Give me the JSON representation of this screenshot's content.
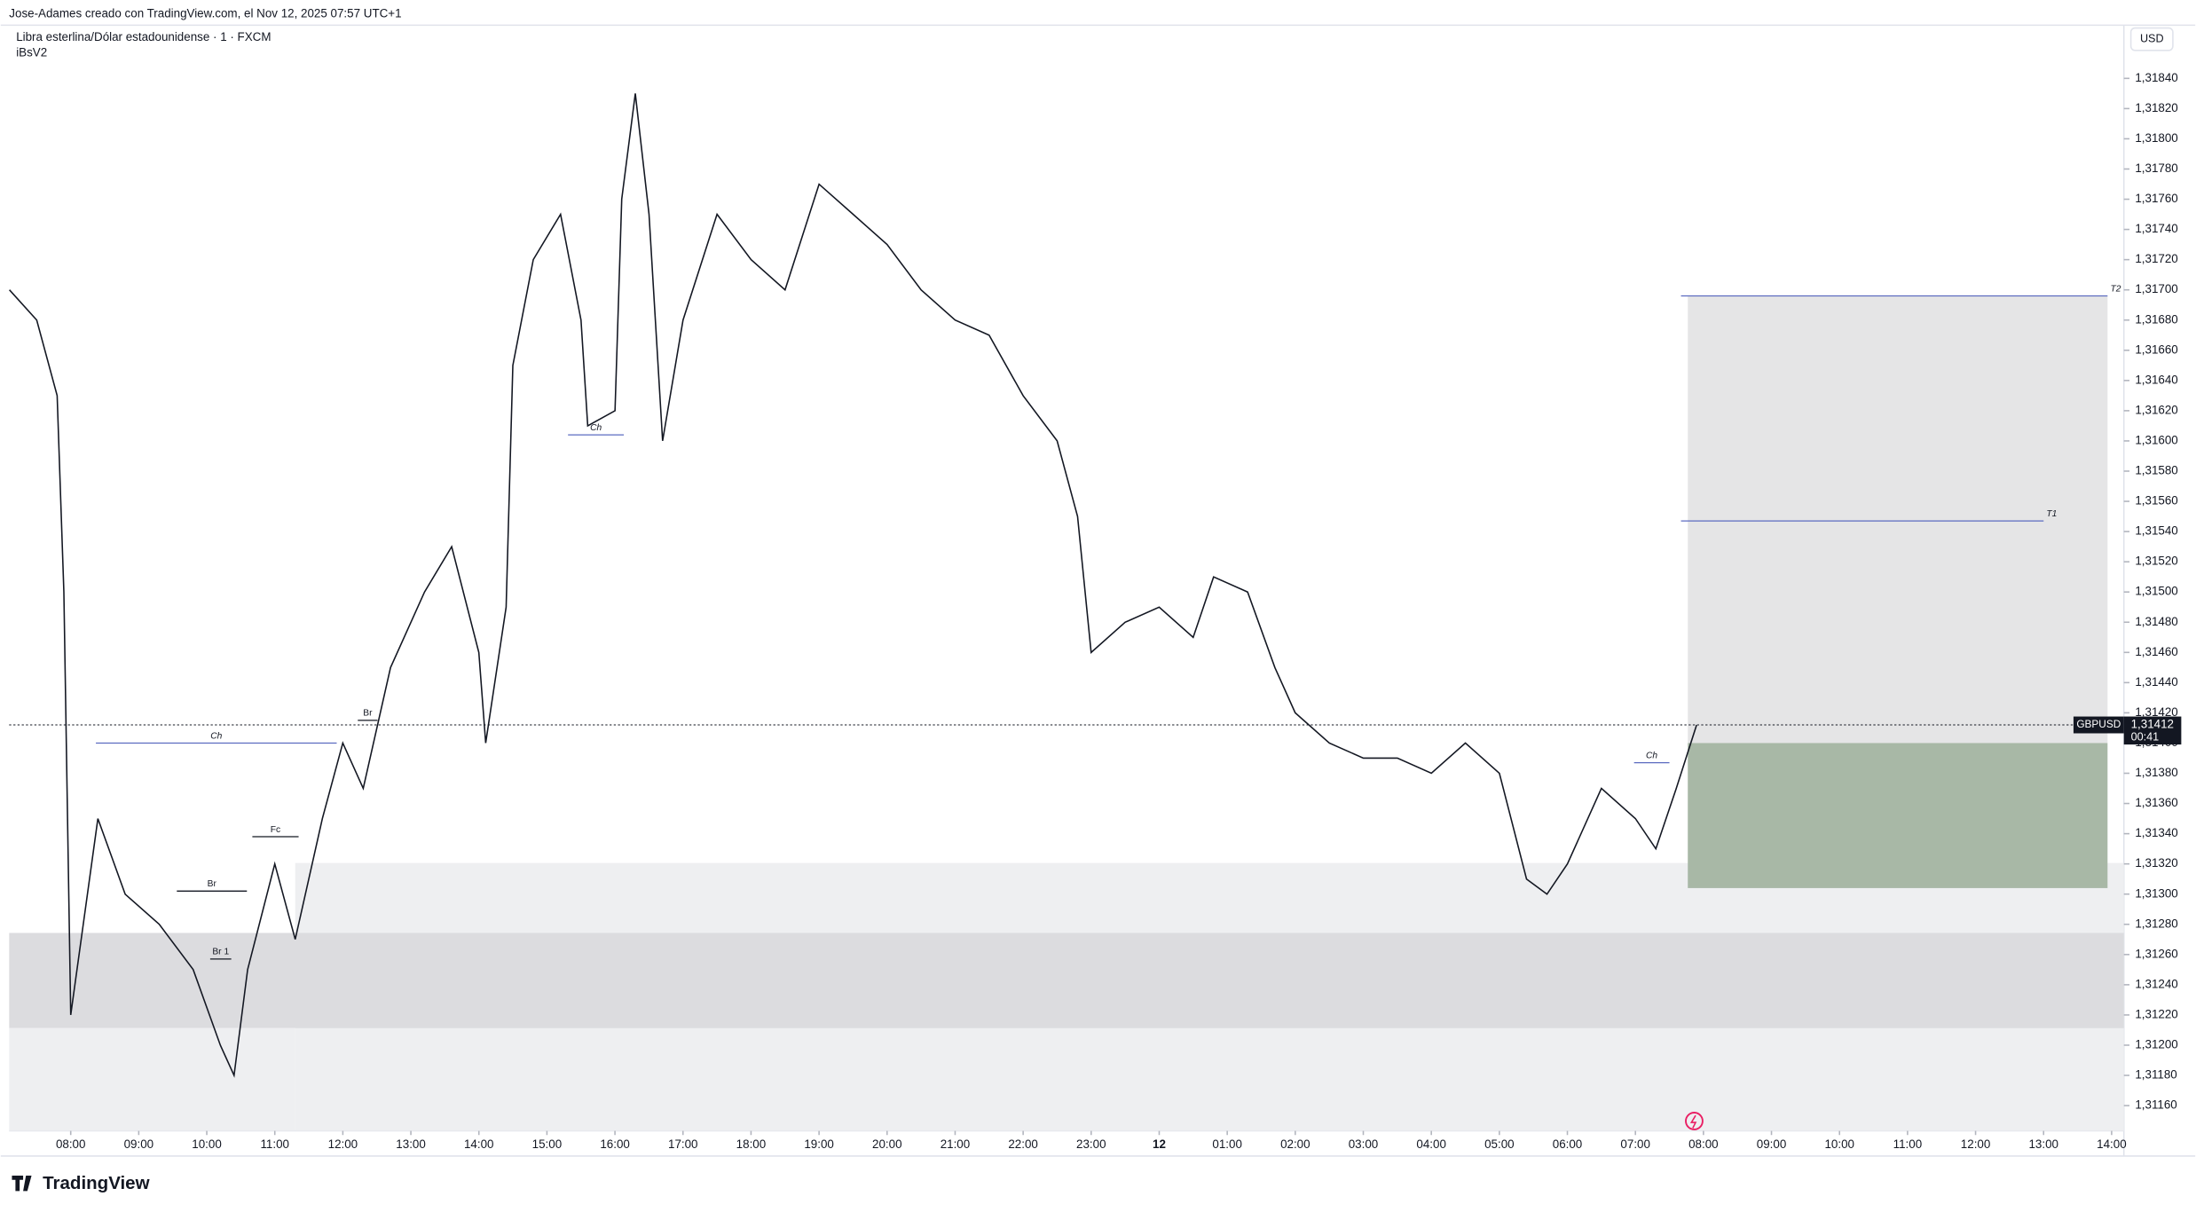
{
  "header": {
    "credit": "Jose-Adames creado con TradingView.com, el Nov 12, 2025 07:57 UTC+1",
    "instrument": "Libra esterlina/Dólar estadounidense · 1 · FXCM",
    "indicator": "iBsV2",
    "currency": "USD",
    "brand": "TradingView"
  },
  "chart_data": {
    "type": "line",
    "color": "#131722",
    "symbol": "GBPUSD",
    "last_price": {
      "value": 1.31412,
      "label": "1,31412"
    },
    "countdown": "00:41",
    "x": [
      7.1,
      7.5,
      7.8,
      7.9,
      8.0,
      8.4,
      8.8,
      9.3,
      9.8,
      10.2,
      10.4,
      10.6,
      11.0,
      11.3,
      11.7,
      12.0,
      12.3,
      12.7,
      13.2,
      13.6,
      14.0,
      14.1,
      14.4,
      14.5,
      14.8,
      15.2,
      15.5,
      15.6,
      16.0,
      16.1,
      16.3,
      16.5,
      16.7,
      17.0,
      17.5,
      18.0,
      18.5,
      19.0,
      19.5,
      20.0,
      20.5,
      21.0,
      21.5,
      22.0,
      22.5,
      22.8,
      23.0,
      23.5,
      24.0,
      24.5,
      24.8,
      25.3,
      25.7,
      26.0,
      26.5,
      27.0,
      27.5,
      28.0,
      28.5,
      29.0,
      29.4,
      29.7,
      30.0,
      30.5,
      31.0,
      31.3,
      31.6,
      31.9
    ],
    "values": [
      1.317,
      1.3168,
      1.3163,
      1.315,
      1.3122,
      1.3135,
      1.313,
      1.3128,
      1.3125,
      1.312,
      1.3118,
      1.3125,
      1.3132,
      1.3127,
      1.3135,
      1.314,
      1.3137,
      1.3145,
      1.315,
      1.3153,
      1.3146,
      1.314,
      1.3149,
      1.3165,
      1.3172,
      1.3175,
      1.3168,
      1.3161,
      1.3162,
      1.3176,
      1.3183,
      1.3175,
      1.316,
      1.3168,
      1.3175,
      1.3172,
      1.317,
      1.3177,
      1.3175,
      1.3173,
      1.317,
      1.3168,
      1.3167,
      1.3163,
      1.316,
      1.3155,
      1.3146,
      1.3148,
      1.3149,
      1.3147,
      1.3151,
      1.315,
      1.3145,
      1.3142,
      1.314,
      1.3139,
      1.3139,
      1.3138,
      1.314,
      1.3138,
      1.3131,
      1.313,
      1.3132,
      1.3137,
      1.3135,
      1.3133,
      1.3137,
      1.31412
    ],
    "xlim": [
      7.095,
      38.18
    ],
    "xticks": [
      {
        "value": 8,
        "label": "08:00"
      },
      {
        "value": 9,
        "label": "09:00"
      },
      {
        "value": 10,
        "label": "10:00"
      },
      {
        "value": 11,
        "label": "11:00"
      },
      {
        "value": 12,
        "label": "12:00"
      },
      {
        "value": 13,
        "label": "13:00"
      },
      {
        "value": 14,
        "label": "14:00"
      },
      {
        "value": 15,
        "label": "15:00"
      },
      {
        "value": 16,
        "label": "16:00"
      },
      {
        "value": 17,
        "label": "17:00"
      },
      {
        "value": 18,
        "label": "18:00"
      },
      {
        "value": 19,
        "label": "19:00"
      },
      {
        "value": 20,
        "label": "20:00"
      },
      {
        "value": 21,
        "label": "21:00"
      },
      {
        "value": 22,
        "label": "22:00"
      },
      {
        "value": 23,
        "label": "23:00"
      },
      {
        "value": 24,
        "label": "12"
      },
      {
        "value": 25,
        "label": "01:00"
      },
      {
        "value": 26,
        "label": "02:00"
      },
      {
        "value": 27,
        "label": "03:00"
      },
      {
        "value": 28,
        "label": "04:00"
      },
      {
        "value": 29,
        "label": "05:00"
      },
      {
        "value": 30,
        "label": "06:00"
      },
      {
        "value": 31,
        "label": "07:00"
      },
      {
        "value": 32,
        "label": "08:00"
      },
      {
        "value": 33,
        "label": "09:00"
      },
      {
        "value": 34,
        "label": "10:00"
      },
      {
        "value": 35,
        "label": "11:00"
      },
      {
        "value": 36,
        "label": "12:00"
      },
      {
        "value": 37,
        "label": "13:00"
      },
      {
        "value": 38,
        "label": "14:00"
      }
    ],
    "ylim": [
      1.311433,
      1.318752
    ],
    "yticks": [
      {
        "value": 1.3116,
        "label": "1,31160"
      },
      {
        "value": 1.3118,
        "label": "1,31180"
      },
      {
        "value": 1.312,
        "label": "1,31200"
      },
      {
        "value": 1.3122,
        "label": "1,31220"
      },
      {
        "value": 1.3124,
        "label": "1,31240"
      },
      {
        "value": 1.3126,
        "label": "1,31260"
      },
      {
        "value": 1.3128,
        "label": "1,31280"
      },
      {
        "value": 1.313,
        "label": "1,31300"
      },
      {
        "value": 1.3132,
        "label": "1,31320"
      },
      {
        "value": 1.3134,
        "label": "1,31340"
      },
      {
        "value": 1.3136,
        "label": "1,31360"
      },
      {
        "value": 1.3138,
        "label": "1,31380"
      },
      {
        "value": 1.314,
        "label": "1,31400"
      },
      {
        "value": 1.3142,
        "label": "1,31420"
      },
      {
        "value": 1.3144,
        "label": "1,31440"
      },
      {
        "value": 1.3146,
        "label": "1,31460"
      },
      {
        "value": 1.3148,
        "label": "1,31480"
      },
      {
        "value": 1.315,
        "label": "1,31500"
      },
      {
        "value": 1.3152,
        "label": "1,31520"
      },
      {
        "value": 1.3154,
        "label": "1,31540"
      },
      {
        "value": 1.3156,
        "label": "1,31560"
      },
      {
        "value": 1.3158,
        "label": "1,31580"
      },
      {
        "value": 1.316,
        "label": "1,31600"
      },
      {
        "value": 1.3162,
        "label": "1,31620"
      },
      {
        "value": 1.3164,
        "label": "1,31640"
      },
      {
        "value": 1.3166,
        "label": "1,31660"
      },
      {
        "value": 1.3168,
        "label": "1,31680"
      },
      {
        "value": 1.317,
        "label": "1,31700"
      },
      {
        "value": 1.3172,
        "label": "1,31720"
      },
      {
        "value": 1.3174,
        "label": "1,31740"
      },
      {
        "value": 1.3176,
        "label": "1,31760"
      },
      {
        "value": 1.3178,
        "label": "1,31780"
      },
      {
        "value": 1.318,
        "label": "1,31800"
      },
      {
        "value": 1.3182,
        "label": "1,31820"
      },
      {
        "value": 1.3184,
        "label": "1,31840"
      }
    ],
    "zones": [
      {
        "x": [
          11.3,
          38.18
        ],
        "y": [
          1.311433,
          1.313206
        ],
        "color": "#eeeff1"
      },
      {
        "x": [
          7.095,
          38.18
        ],
        "y": [
          1.312113,
          1.312743
        ],
        "color": "#dcdcdf"
      },
      {
        "x": [
          7.095,
          11.3
        ],
        "y": [
          1.311433,
          1.312113
        ],
        "color": "#eeeff1"
      },
      {
        "x": [
          31.77,
          37.94
        ],
        "y": [
          1.314,
          1.31696
        ],
        "color": "#e5e5e6"
      },
      {
        "x": [
          31.77,
          37.94
        ],
        "y": [
          1.31304,
          1.314
        ],
        "color": "#a8b8a6"
      }
    ],
    "levels": [
      {
        "label": "T2",
        "x": [
          31.67,
          37.94
        ],
        "y": 1.31696
      },
      {
        "label": "T1",
        "x": [
          31.67,
          37.0
        ],
        "y": 1.31547
      },
      {
        "label": "Ch",
        "x": [
          15.31,
          16.13
        ],
        "y": 1.31604
      },
      {
        "label": "Ch",
        "x": [
          8.37,
          11.91
        ],
        "y": 1.314
      },
      {
        "label": "Br",
        "x": [
          9.56,
          10.59
        ],
        "y": 1.31302
      },
      {
        "label": "Fc",
        "x": [
          10.67,
          11.35
        ],
        "y": 1.31338
      },
      {
        "label": "Br",
        "x": [
          12.22,
          12.51
        ],
        "y": 1.31415
      },
      {
        "label": "Br 1",
        "x": [
          10.05,
          10.36
        ],
        "y": 1.31257
      },
      {
        "label": "Ch",
        "x": [
          30.98,
          31.5
        ],
        "y": 1.31387
      }
    ]
  }
}
